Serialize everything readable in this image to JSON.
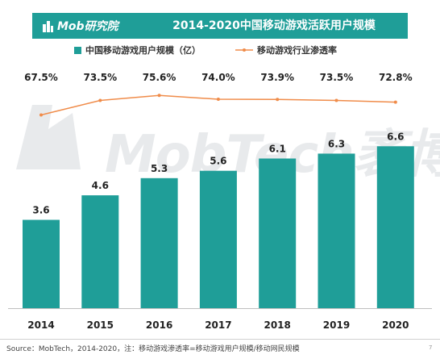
{
  "header": {
    "logo_text": "Mob研究院",
    "title": "2014-2020中国移动游戏活跃用户规模"
  },
  "colors": {
    "bar": "#1f9e98",
    "line": "#f08c4a",
    "watermark": "#e8eaec"
  },
  "watermark_text": "MobTech袤博",
  "chart_data": {
    "type": "bar",
    "categories": [
      "2014",
      "2015",
      "2016",
      "2017",
      "2018",
      "2019",
      "2020"
    ],
    "series": [
      {
        "name": "中国移动游戏用户规模（亿）",
        "type": "bar",
        "values": [
          3.6,
          4.6,
          5.3,
          5.6,
          6.1,
          6.3,
          6.6
        ]
      },
      {
        "name": "移动游戏行业渗透率",
        "type": "line",
        "values": [
          67.5,
          73.5,
          75.6,
          74.0,
          73.9,
          73.5,
          72.8
        ]
      }
    ],
    "bar_labels": [
      "3.6",
      "4.6",
      "5.3",
      "5.6",
      "6.1",
      "6.3",
      "6.6"
    ],
    "line_labels": [
      "67.5%",
      "73.5%",
      "75.6%",
      "74.0%",
      "73.9%",
      "73.5%",
      "72.8%"
    ],
    "ylim": [
      0,
      7.3
    ],
    "line_ylim": [
      55,
      85
    ],
    "legend_position": "top",
    "grid": false
  },
  "footer": {
    "source": "Source：MobTech，2014-2020，注：移动游戏渗透率=移动游戏用户规模/移动网民规模",
    "page_number": "7"
  }
}
